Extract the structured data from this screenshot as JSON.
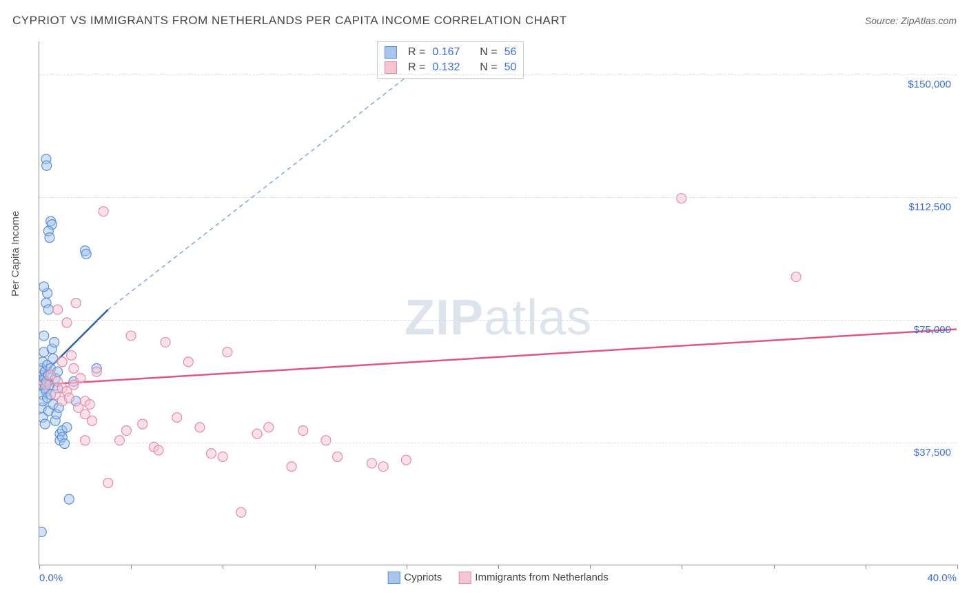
{
  "header": {
    "title": "CYPRIOT VS IMMIGRANTS FROM NETHERLANDS PER CAPITA INCOME CORRELATION CHART",
    "source": "Source: ZipAtlas.com"
  },
  "watermark": {
    "part1": "ZIP",
    "part2": "atlas"
  },
  "chart": {
    "type": "scatter",
    "ylabel": "Per Capita Income",
    "xlim": [
      0,
      40
    ],
    "ylim": [
      0,
      160000
    ],
    "ytick_values": [
      37500,
      75000,
      112500,
      150000
    ],
    "ytick_labels": [
      "$37,500",
      "$75,000",
      "$112,500",
      "$150,000"
    ],
    "xtick_values": [
      0,
      4,
      8,
      12,
      16,
      20,
      24,
      28,
      32,
      36,
      40
    ],
    "xaxis_label_left": "0.0%",
    "xaxis_label_right": "40.0%",
    "background_color": "#ffffff",
    "grid_color": "#dddddd",
    "axis_color": "#888888",
    "label_color": "#3b6fd6",
    "marker_radius": 7,
    "marker_opacity": 0.5,
    "marker_stroke_width": 1.2
  },
  "series": [
    {
      "name": "Cypriots",
      "color_fill": "#a8c5ed",
      "color_stroke": "#5a8fd6",
      "swatch_fill": "#a8c5ed",
      "swatch_border": "#5a8fd6",
      "stats": {
        "r": "0.167",
        "n": "56"
      },
      "trend": {
        "x1": 0,
        "y1": 57000,
        "x2": 3.0,
        "y2": 78000,
        "dash_x2": 18,
        "dash_y2": 160000,
        "solid_color": "#2b5db0",
        "dash_color": "#7fa6df"
      },
      "points": [
        [
          0.1,
          52000
        ],
        [
          0.1,
          55000
        ],
        [
          0.1,
          58000
        ],
        [
          0.1,
          48000
        ],
        [
          0.1,
          60000
        ],
        [
          0.15,
          62000
        ],
        [
          0.15,
          50000
        ],
        [
          0.2,
          65000
        ],
        [
          0.2,
          57000
        ],
        [
          0.2,
          70000
        ],
        [
          0.25,
          54000
        ],
        [
          0.25,
          59000
        ],
        [
          0.3,
          56000
        ],
        [
          0.3,
          53000
        ],
        [
          0.35,
          51000
        ],
        [
          0.35,
          61000
        ],
        [
          0.4,
          58000
        ],
        [
          0.4,
          47000
        ],
        [
          0.45,
          55000
        ],
        [
          0.5,
          60000
        ],
        [
          0.5,
          52000
        ],
        [
          0.6,
          49000
        ],
        [
          0.6,
          63000
        ],
        [
          0.7,
          57000
        ],
        [
          0.8,
          54000
        ],
        [
          0.8,
          59000
        ],
        [
          0.9,
          40000
        ],
        [
          0.9,
          38000
        ],
        [
          1.0,
          41000
        ],
        [
          1.0,
          39000
        ],
        [
          1.1,
          37000
        ],
        [
          1.2,
          42000
        ],
        [
          0.3,
          80000
        ],
        [
          0.35,
          83000
        ],
        [
          0.4,
          78000
        ],
        [
          0.2,
          85000
        ],
        [
          0.5,
          105000
        ],
        [
          0.55,
          104000
        ],
        [
          0.4,
          102000
        ],
        [
          0.45,
          100000
        ],
        [
          0.3,
          124000
        ],
        [
          0.32,
          122000
        ],
        [
          2.0,
          96000
        ],
        [
          2.05,
          95000
        ],
        [
          2.5,
          60000
        ],
        [
          1.5,
          56000
        ],
        [
          1.6,
          50000
        ],
        [
          0.15,
          45000
        ],
        [
          0.25,
          43000
        ],
        [
          0.1,
          10000
        ],
        [
          0.7,
          44000
        ],
        [
          0.75,
          46000
        ],
        [
          0.85,
          48000
        ],
        [
          1.3,
          20000
        ],
        [
          0.55,
          66000
        ],
        [
          0.65,
          68000
        ]
      ]
    },
    {
      "name": "Immigrants from Netherlands",
      "color_fill": "#f5c4d1",
      "color_stroke": "#e48aa5",
      "swatch_fill": "#f5c4d1",
      "swatch_border": "#e48aa5",
      "stats": {
        "r": "0.132",
        "n": "50"
      },
      "trend": {
        "x1": 0,
        "y1": 55000,
        "x2": 40,
        "y2": 72000,
        "solid_color": "#e05582"
      },
      "points": [
        [
          0.3,
          55000
        ],
        [
          0.5,
          58000
        ],
        [
          0.7,
          52000
        ],
        [
          0.8,
          56000
        ],
        [
          1.0,
          50000
        ],
        [
          1.0,
          54000
        ],
        [
          1.2,
          53000
        ],
        [
          1.3,
          51000
        ],
        [
          1.5,
          60000
        ],
        [
          1.5,
          55000
        ],
        [
          1.7,
          48000
        ],
        [
          1.8,
          57000
        ],
        [
          2.0,
          50000
        ],
        [
          2.0,
          46000
        ],
        [
          2.2,
          49000
        ],
        [
          2.3,
          44000
        ],
        [
          2.5,
          59000
        ],
        [
          1.6,
          80000
        ],
        [
          0.8,
          78000
        ],
        [
          1.2,
          74000
        ],
        [
          2.8,
          108000
        ],
        [
          3.5,
          38000
        ],
        [
          3.8,
          41000
        ],
        [
          4.0,
          70000
        ],
        [
          4.5,
          43000
        ],
        [
          5.0,
          36000
        ],
        [
          5.2,
          35000
        ],
        [
          5.5,
          68000
        ],
        [
          6.0,
          45000
        ],
        [
          6.5,
          62000
        ],
        [
          7.0,
          42000
        ],
        [
          7.5,
          34000
        ],
        [
          8.0,
          33000
        ],
        [
          8.2,
          65000
        ],
        [
          8.8,
          16000
        ],
        [
          9.5,
          40000
        ],
        [
          10.0,
          42000
        ],
        [
          11.0,
          30000
        ],
        [
          11.5,
          41000
        ],
        [
          12.5,
          38000
        ],
        [
          13.0,
          33000
        ],
        [
          14.5,
          31000
        ],
        [
          15.0,
          30000
        ],
        [
          16.0,
          32000
        ],
        [
          28.0,
          112000
        ],
        [
          33.0,
          88000
        ],
        [
          3.0,
          25000
        ],
        [
          2.0,
          38000
        ],
        [
          1.0,
          62000
        ],
        [
          1.4,
          64000
        ]
      ]
    }
  ],
  "legend": {
    "series1_label": "Cypriots",
    "series2_label": "Immigrants from Netherlands"
  },
  "statsbox": {
    "r_label": "R =",
    "n_label": "N ="
  }
}
